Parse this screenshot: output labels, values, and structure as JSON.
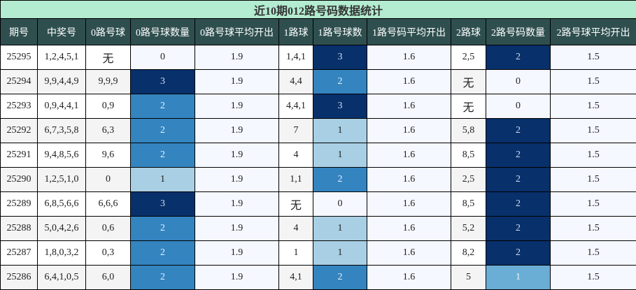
{
  "title": "近10期012路号码数据统计",
  "headers": [
    "期号",
    "中奖号",
    "0路号球",
    "0路号球数量",
    "0路号球平均开出",
    "1路球",
    "1路号球数",
    "1路号码平均开出",
    "2路球",
    "2路号码数量",
    "2路号球平均开出"
  ],
  "colors": {
    "title_bg": "#b3ecd0",
    "header_bg": "#2f4f4f",
    "count_0": "#f5f8fe",
    "count_1": "#a9cfe4",
    "count_1_alt": "#6aaed6",
    "count_2": "#3484c0",
    "count_3": "#08306b"
  },
  "rows": [
    {
      "issue": "25295",
      "numbers": "1,2,4,5,1",
      "r0": "无",
      "r0_count": "0",
      "r0_avg": "1.9",
      "r1": "1,4,1",
      "r1_count": "3",
      "r1_avg": "1.6",
      "r2": "2,5",
      "r2_count": "2",
      "r2_avg": "1.5"
    },
    {
      "issue": "25294",
      "numbers": "9,9,4,4,9",
      "r0": "9,9,9",
      "r0_count": "3",
      "r0_avg": "1.9",
      "r1": "4,4",
      "r1_count": "2",
      "r1_avg": "1.6",
      "r2": "无",
      "r2_count": "0",
      "r2_avg": "1.5"
    },
    {
      "issue": "25293",
      "numbers": "0,9,4,4,1",
      "r0": "0,9",
      "r0_count": "2",
      "r0_avg": "1.9",
      "r1": "4,4,1",
      "r1_count": "3",
      "r1_avg": "1.6",
      "r2": "无",
      "r2_count": "0",
      "r2_avg": "1.5"
    },
    {
      "issue": "25292",
      "numbers": "6,7,3,5,8",
      "r0": "6,3",
      "r0_count": "2",
      "r0_avg": "1.9",
      "r1": "7",
      "r1_count": "1",
      "r1_avg": "1.6",
      "r2": "5,8",
      "r2_count": "2",
      "r2_avg": "1.5"
    },
    {
      "issue": "25291",
      "numbers": "9,4,8,5,6",
      "r0": "9,6",
      "r0_count": "2",
      "r0_avg": "1.9",
      "r1": "4",
      "r1_count": "1",
      "r1_avg": "1.6",
      "r2": "8,5",
      "r2_count": "2",
      "r2_avg": "1.5"
    },
    {
      "issue": "25290",
      "numbers": "1,2,5,1,0",
      "r0": "0",
      "r0_count": "1",
      "r0_avg": "1.9",
      "r1": "1,1",
      "r1_count": "2",
      "r1_avg": "1.6",
      "r2": "2,5",
      "r2_count": "2",
      "r2_avg": "1.5"
    },
    {
      "issue": "25289",
      "numbers": "6,8,5,6,6",
      "r0": "6,6,6",
      "r0_count": "3",
      "r0_avg": "1.9",
      "r1": "无",
      "r1_count": "0",
      "r1_avg": "1.6",
      "r2": "8,5",
      "r2_count": "2",
      "r2_avg": "1.5"
    },
    {
      "issue": "25288",
      "numbers": "5,0,4,2,6",
      "r0": "0,6",
      "r0_count": "2",
      "r0_avg": "1.9",
      "r1": "4",
      "r1_count": "1",
      "r1_avg": "1.6",
      "r2": "5,2",
      "r2_count": "2",
      "r2_avg": "1.5"
    },
    {
      "issue": "25287",
      "numbers": "1,8,0,3,2",
      "r0": "0,3",
      "r0_count": "2",
      "r0_avg": "1.9",
      "r1": "1",
      "r1_count": "1",
      "r1_avg": "1.6",
      "r2": "8,2",
      "r2_count": "2",
      "r2_avg": "1.5"
    },
    {
      "issue": "25286",
      "numbers": "6,4,1,0,5",
      "r0": "6,0",
      "r0_count": "2",
      "r0_avg": "1.9",
      "r1": "4,1",
      "r1_count": "2",
      "r1_avg": "1.6",
      "r2": "5",
      "r2_count": "1",
      "r2_avg": "1.5"
    }
  ]
}
